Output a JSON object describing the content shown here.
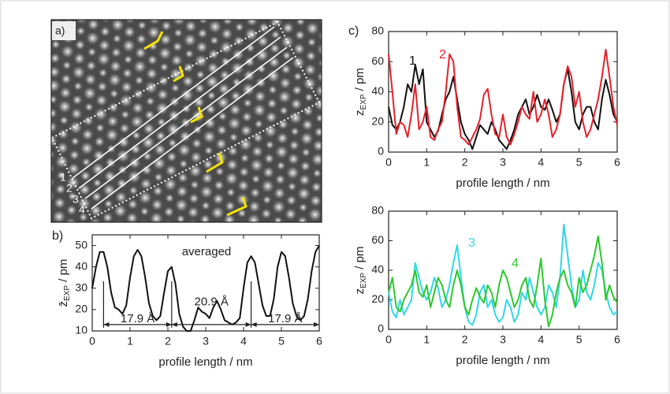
{
  "image": {
    "panel_label": "a)",
    "line_labels": [
      "1",
      "2",
      "3",
      "4"
    ]
  },
  "chart_data": [
    {
      "type": "line",
      "panel_label": "b)",
      "annotation": "averaged",
      "xlabel": "profile length / nm",
      "ylabel": {
        "symbol": "z̄",
        "subscript": "EXP",
        "unit": " / pm"
      },
      "xlim": [
        0,
        6
      ],
      "xticks": [
        0,
        1,
        2,
        3,
        4,
        5,
        6
      ],
      "ylim": [
        10,
        55
      ],
      "yticks": [
        10,
        20,
        30,
        40,
        50
      ],
      "x": [
        0,
        0.1,
        0.2,
        0.3,
        0.4,
        0.5,
        0.6,
        0.7,
        0.8,
        0.9,
        1,
        1.1,
        1.2,
        1.3,
        1.4,
        1.5,
        1.6,
        1.7,
        1.8,
        1.9,
        2,
        2.1,
        2.2,
        2.3,
        2.4,
        2.5,
        2.6,
        2.7,
        2.8,
        2.9,
        3,
        3.1,
        3.2,
        3.3,
        3.4,
        3.5,
        3.6,
        3.7,
        3.8,
        3.9,
        4,
        4.1,
        4.2,
        4.3,
        4.4,
        4.5,
        4.6,
        4.7,
        4.8,
        4.9,
        5,
        5.1,
        5.2,
        5.3,
        5.4,
        5.5,
        5.6,
        5.7,
        5.8,
        5.9,
        6
      ],
      "series": [
        {
          "color": "#111111",
          "values": [
            30,
            40,
            47,
            47,
            40,
            28,
            21,
            20,
            18,
            22,
            35,
            45,
            48,
            45,
            35,
            23,
            17,
            15,
            17,
            28,
            38,
            40,
            32,
            18,
            12,
            10,
            10,
            15,
            21,
            19,
            18,
            16,
            21,
            24,
            20,
            15,
            14,
            13,
            14,
            16,
            30,
            42,
            45,
            42,
            32,
            22,
            17,
            17,
            25,
            40,
            47,
            45,
            35,
            23,
            17,
            15,
            17,
            25,
            38,
            47,
            50
          ]
        }
      ],
      "dimension_y": 13,
      "dimension_lines": [
        {
          "label": "17.9 Å",
          "from": 0.3,
          "to": 2.1,
          "label_y": 15.5
        },
        {
          "label": "20.9 Å",
          "from": 2.1,
          "to": 4.2,
          "label_y": 23.5
        },
        {
          "label": "17.9 Å",
          "from": 4.2,
          "to": 6,
          "label_y": 15.5
        }
      ]
    },
    {
      "type": "line",
      "panel_label": "c)",
      "xlabel": "profile length / nm",
      "ylabel": {
        "symbol": "z",
        "subscript": "EXP",
        "unit": " / pm"
      },
      "xlim": [
        0,
        6
      ],
      "xticks": [
        0,
        1,
        2,
        3,
        4,
        5,
        6
      ],
      "ylim": [
        0,
        80
      ],
      "yticks": [
        0,
        20,
        40,
        60,
        80
      ],
      "x": [
        0,
        0.1,
        0.2,
        0.3,
        0.4,
        0.5,
        0.6,
        0.7,
        0.8,
        0.9,
        1,
        1.1,
        1.2,
        1.3,
        1.4,
        1.5,
        1.6,
        1.7,
        1.8,
        1.9,
        2,
        2.1,
        2.2,
        2.3,
        2.4,
        2.5,
        2.6,
        2.7,
        2.8,
        2.9,
        3,
        3.1,
        3.2,
        3.3,
        3.4,
        3.5,
        3.6,
        3.7,
        3.8,
        3.9,
        4,
        4.1,
        4.2,
        4.3,
        4.4,
        4.5,
        4.6,
        4.7,
        4.8,
        4.9,
        5,
        5.1,
        5.2,
        5.3,
        5.4,
        5.5,
        5.6,
        5.7,
        5.8,
        5.9,
        6
      ],
      "series": [
        {
          "name": "1",
          "color": "#111111",
          "values": [
            30,
            18,
            15,
            20,
            30,
            45,
            40,
            58,
            45,
            55,
            20,
            15,
            10,
            14,
            25,
            35,
            40,
            50,
            35,
            20,
            12,
            8,
            2,
            10,
            18,
            15,
            12,
            20,
            15,
            8,
            5,
            2,
            8,
            15,
            25,
            30,
            35,
            25,
            30,
            38,
            30,
            28,
            35,
            28,
            20,
            25,
            45,
            55,
            40,
            20,
            15,
            25,
            30,
            30,
            20,
            15,
            35,
            48,
            38,
            25,
            20
          ]
        },
        {
          "name": "2",
          "color": "#e8202a",
          "values": [
            65,
            40,
            12,
            20,
            18,
            10,
            25,
            45,
            15,
            20,
            30,
            10,
            8,
            15,
            20,
            40,
            65,
            60,
            30,
            10,
            8,
            5,
            10,
            15,
            22,
            38,
            42,
            25,
            12,
            10,
            25,
            10,
            5,
            12,
            20,
            30,
            25,
            22,
            40,
            20,
            25,
            35,
            25,
            10,
            15,
            25,
            45,
            57,
            50,
            30,
            40,
            20,
            10,
            15,
            25,
            35,
            50,
            68,
            50,
            30,
            18
          ]
        }
      ]
    },
    {
      "type": "line",
      "xlabel": "profile length / nm",
      "ylabel": {
        "symbol": "z",
        "subscript": "EXP",
        "unit": " / pm"
      },
      "xlim": [
        0,
        6
      ],
      "xticks": [
        0,
        1,
        2,
        3,
        4,
        5,
        6
      ],
      "ylim": [
        0,
        80
      ],
      "yticks": [
        0,
        20,
        40,
        60,
        80
      ],
      "x": [
        0,
        0.1,
        0.2,
        0.3,
        0.4,
        0.5,
        0.6,
        0.7,
        0.8,
        0.9,
        1,
        1.1,
        1.2,
        1.3,
        1.4,
        1.5,
        1.6,
        1.7,
        1.8,
        1.9,
        2,
        2.1,
        2.2,
        2.3,
        2.4,
        2.5,
        2.6,
        2.7,
        2.8,
        2.9,
        3,
        3.1,
        3.2,
        3.3,
        3.4,
        3.5,
        3.6,
        3.7,
        3.8,
        3.9,
        4,
        4.1,
        4.2,
        4.3,
        4.4,
        4.5,
        4.6,
        4.7,
        4.8,
        4.9,
        5,
        5.1,
        5.2,
        5.3,
        5.4,
        5.5,
        5.6,
        5.7,
        5.8,
        5.9,
        6
      ],
      "series": [
        {
          "name": "3",
          "color": "#2fd8e8",
          "values": [
            25,
            12,
            8,
            20,
            10,
            15,
            20,
            45,
            35,
            25,
            20,
            25,
            35,
            28,
            15,
            20,
            30,
            45,
            57,
            35,
            15,
            5,
            3,
            10,
            25,
            30,
            15,
            20,
            10,
            5,
            8,
            20,
            15,
            5,
            10,
            25,
            20,
            35,
            25,
            15,
            10,
            15,
            30,
            25,
            15,
            35,
            71,
            50,
            30,
            15,
            20,
            40,
            25,
            20,
            30,
            45,
            40,
            25,
            15,
            10,
            12
          ]
        },
        {
          "name": "4",
          "color": "#2ec82e",
          "values": [
            25,
            35,
            15,
            12,
            20,
            25,
            30,
            40,
            25,
            22,
            30,
            15,
            25,
            35,
            30,
            20,
            15,
            30,
            40,
            30,
            15,
            10,
            20,
            28,
            22,
            18,
            30,
            25,
            15,
            30,
            40,
            35,
            25,
            15,
            20,
            30,
            35,
            20,
            15,
            30,
            48,
            20,
            2,
            10,
            25,
            35,
            40,
            30,
            25,
            15,
            35,
            25,
            30,
            40,
            50,
            63,
            45,
            20,
            30,
            22,
            18
          ]
        }
      ]
    }
  ]
}
